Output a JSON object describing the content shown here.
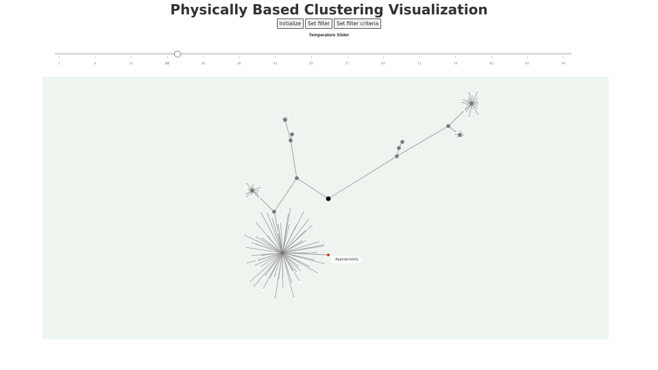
{
  "page": {
    "title": "Physically Based Clustering Visualization"
  },
  "toolbar": {
    "initialize_label": "Initialize",
    "set_filter_label": "Set filter",
    "set_filter_criteria_label": "Set filter criteria"
  },
  "slider": {
    "label": "Temperature Slider",
    "value": 24,
    "min": 1,
    "max": 99,
    "ticks": [
      "1",
      "8",
      "16",
      "24",
      "26",
      "36",
      "43",
      "50",
      "57",
      "64",
      "71",
      "78",
      "85",
      "92",
      "99"
    ],
    "active_tick_index": 3
  },
  "graph": {
    "tooltip_label": "Appropriately",
    "colors": {
      "background": "#edf5ee",
      "edge": "#999999",
      "node": "#777777",
      "root_node": "#000000",
      "highlight_node": "#e00000",
      "leaf_halo": "#ffffff"
    }
  }
}
